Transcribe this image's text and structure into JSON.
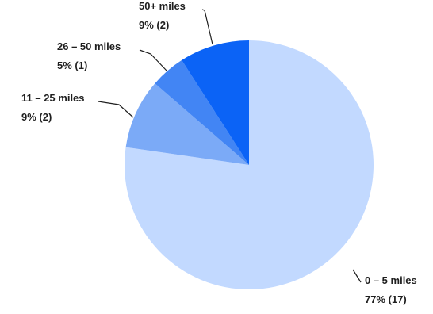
{
  "chart_data": {
    "type": "pie",
    "title": "",
    "start_angle_deg": 0,
    "direction": "clockwise",
    "slices": [
      {
        "label": "0 – 5 miles",
        "summary": "77% (17)",
        "value": 17,
        "percent": 77,
        "color": "#c2d9ff"
      },
      {
        "label": "11 – 25 miles",
        "summary": "9% (2)",
        "value": 2,
        "percent": 9,
        "color": "#7baaf7"
      },
      {
        "label": "26 – 50 miles",
        "summary": "5% (1)",
        "value": 1,
        "percent": 5,
        "color": "#4285f4"
      },
      {
        "label": "50+ miles",
        "summary": "9% (2)",
        "value": 2,
        "percent": 9,
        "color": "#0b63f6"
      }
    ]
  }
}
